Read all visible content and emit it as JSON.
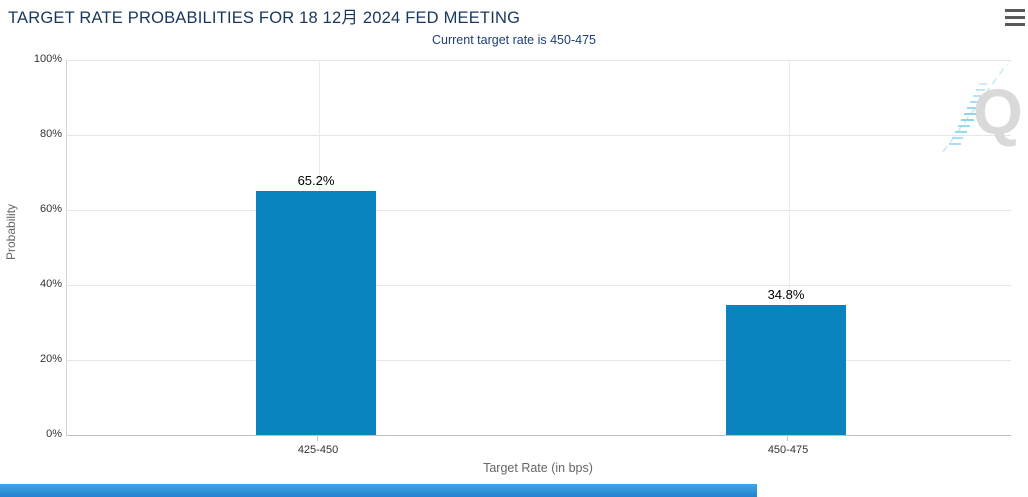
{
  "header": {
    "menu_icon": "hamburger-icon"
  },
  "chart_data": {
    "type": "bar",
    "title": "TARGET RATE PROBABILITIES FOR 18 12月 2024 FED MEETING",
    "subtitle": "Current target rate is 450-475",
    "categories": [
      "425-450",
      "450-475"
    ],
    "values": [
      65.2,
      34.8
    ],
    "value_labels": [
      "65.2%",
      "34.8%"
    ],
    "xlabel": "Target Rate (in bps)",
    "ylabel": "Probability",
    "ylim": [
      0,
      100
    ],
    "ytick_labels": [
      "0%",
      "20%",
      "40%",
      "60%",
      "80%",
      "100%"
    ],
    "grid": true,
    "legend": "none",
    "bar_color": "#0984be"
  },
  "watermark": {
    "letter": "Q"
  },
  "colors": {
    "title_text": "#17375e",
    "subtitle_text": "#1c3f77",
    "bar": "#0984be",
    "gridline": "#e6e6e6",
    "axis_line": "#c0c0c0",
    "tick_label": "#333333",
    "axis_title_text": "#666666",
    "value_label": "#000000",
    "menu_icon": "#58595b",
    "watermark_gray": "#d9d9d9",
    "watermark_blue": "#a9def4",
    "bottom_bar": "#2b94dc"
  }
}
